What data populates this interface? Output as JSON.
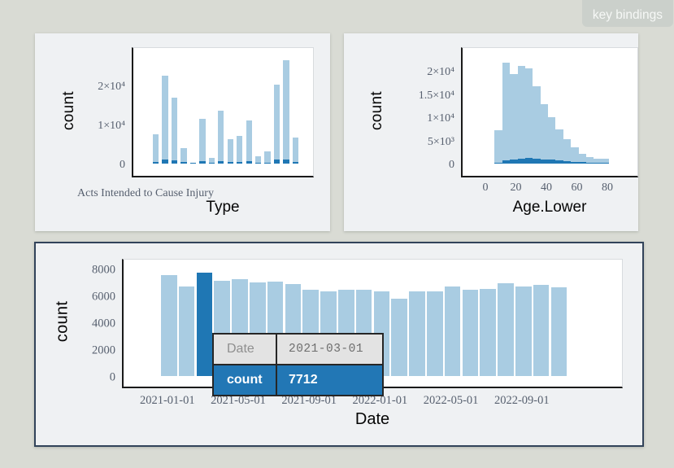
{
  "toolbar": {
    "key_bindings_label": "key bindings"
  },
  "colors": {
    "bar_light": "#a9cce2",
    "bar_dark": "#1f77b4",
    "tooltip_highlight_bg": "#2277b5",
    "bottom_card_border": "#32435a",
    "page_background": "#d9dbd4"
  },
  "tooltip": {
    "rows": [
      {
        "key": "Date",
        "value": "2021-03-01",
        "highlight": false
      },
      {
        "key": "count",
        "value": "7712",
        "highlight": true
      }
    ]
  },
  "chart_data": [
    {
      "id": "type",
      "type": "bar",
      "xlabel": "Type",
      "ylabel": "count",
      "visible_x_tick_label": "Acts Intended to Cause Injury",
      "ylim": [
        0,
        30000
      ],
      "yticks": [
        {
          "label": "0",
          "value": 0
        },
        {
          "label": "1×10⁴",
          "value": 10000
        },
        {
          "label": "2×10⁴",
          "value": 20000
        }
      ],
      "series": [
        {
          "name": "all",
          "values": [
            7400,
            22500,
            16800,
            4000,
            300,
            11400,
            1400,
            13500,
            6200,
            7100,
            11000,
            1900,
            3200,
            20300,
            26500,
            6600
          ]
        },
        {
          "name": "selected",
          "values": [
            480,
            1040,
            830,
            420,
            100,
            625,
            200,
            625,
            420,
            420,
            560,
            200,
            270,
            980,
            1100,
            480
          ]
        }
      ]
    },
    {
      "id": "age",
      "type": "bar",
      "xlabel": "Age.Lower",
      "ylabel": "count",
      "bin_start": 5,
      "bin_width": 5,
      "ylim": [
        0,
        25000
      ],
      "yticks": [
        {
          "label": "0",
          "value": 0
        },
        {
          "label": "5×10³",
          "value": 5000
        },
        {
          "label": "1×10⁴",
          "value": 10000
        },
        {
          "label": "1.5×10⁴",
          "value": 15000
        },
        {
          "label": "2×10⁴",
          "value": 20000
        }
      ],
      "xticks": [
        {
          "label": "0",
          "value": 0
        },
        {
          "label": "20",
          "value": 20
        },
        {
          "label": "40",
          "value": 40
        },
        {
          "label": "60",
          "value": 60
        },
        {
          "label": "80",
          "value": 80
        }
      ],
      "series": [
        {
          "name": "all",
          "values": [
            7300,
            21900,
            19400,
            21200,
            20600,
            16800,
            12800,
            10000,
            7400,
            5300,
            3600,
            2200,
            1400,
            1000,
            1000
          ]
        },
        {
          "name": "selected",
          "values": [
            250,
            700,
            900,
            1100,
            1150,
            1000,
            900,
            800,
            650,
            500,
            400,
            300,
            200,
            150,
            120
          ]
        }
      ]
    },
    {
      "id": "date",
      "type": "bar",
      "xlabel": "Date",
      "ylabel": "count",
      "highlight_index": 2,
      "ylim": [
        0,
        8700
      ],
      "x": [
        "2021-01",
        "2021-02",
        "2021-03",
        "2021-04",
        "2021-05",
        "2021-06",
        "2021-07",
        "2021-08",
        "2021-09",
        "2021-10",
        "2021-11",
        "2021-12",
        "2022-01",
        "2022-02",
        "2022-03",
        "2022-04",
        "2022-05",
        "2022-06",
        "2022-07",
        "2022-08",
        "2022-09",
        "2022-10",
        "2022-11"
      ],
      "values": [
        7500,
        6680,
        7712,
        7090,
        7210,
        6950,
        7050,
        6830,
        6400,
        6300,
        6400,
        6450,
        6320,
        5740,
        6280,
        6320,
        6680,
        6400,
        6480,
        6910,
        6650,
        6790,
        6580
      ],
      "yticks": [
        {
          "label": "0",
          "value": 0
        },
        {
          "label": "2000",
          "value": 2000
        },
        {
          "label": "4000",
          "value": 4000
        },
        {
          "label": "6000",
          "value": 6000
        },
        {
          "label": "8000",
          "value": 8000
        }
      ],
      "xticks": [
        {
          "label": "2021-01-01",
          "bin": 0
        },
        {
          "label": "2021-05-01",
          "bin": 4
        },
        {
          "label": "2021-09-01",
          "bin": 8
        },
        {
          "label": "2022-01-01",
          "bin": 12
        },
        {
          "label": "2022-05-01",
          "bin": 16
        },
        {
          "label": "2022-09-01",
          "bin": 20
        }
      ]
    }
  ]
}
